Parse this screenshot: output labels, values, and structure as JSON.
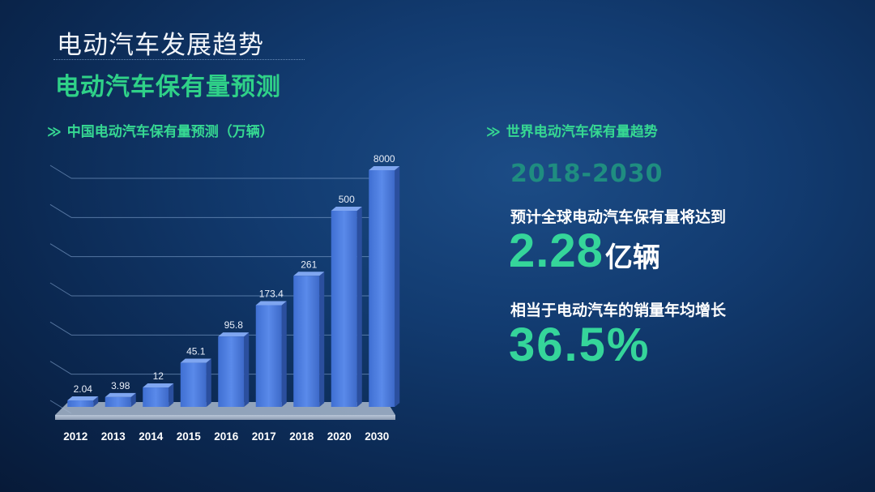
{
  "header": {
    "title": "电动汽车发展趋势",
    "subtitle": "电动汽车保有量预测"
  },
  "left_panel": {
    "chevron": "≫",
    "heading": "中国电动汽车保有量预测（万辆）"
  },
  "right_panel": {
    "chevron": "≫",
    "heading": "世界电动汽车保有量趋势",
    "year_range": "2018-2030",
    "stat1_label": "预计全球电动汽车保有量将达到",
    "stat1_value": "2.28",
    "stat1_unit": "亿辆",
    "stat2_label": "相当于电动汽车的销量年均增长",
    "stat2_value": "36.5%"
  },
  "colors": {
    "accent_green": "#35d59a",
    "bar_blue": "#4f7fde",
    "background": "#123b70"
  },
  "chart_data": {
    "type": "bar",
    "title": "中国电动汽车保有量预测（万辆）",
    "categories": [
      "2012",
      "2013",
      "2014",
      "2015",
      "2016",
      "2017",
      "2018",
      "2020",
      "2030"
    ],
    "values": [
      2.04,
      3.98,
      12,
      45.1,
      95.8,
      173.4,
      261,
      500,
      8000
    ],
    "data_labels": [
      "2.04",
      "3.98",
      "12",
      "45.1",
      "95.8",
      "173.4",
      "261",
      "500",
      "8000"
    ],
    "scale": "non-linear (illustrative bar heights)",
    "grid": true,
    "legend": "none"
  }
}
